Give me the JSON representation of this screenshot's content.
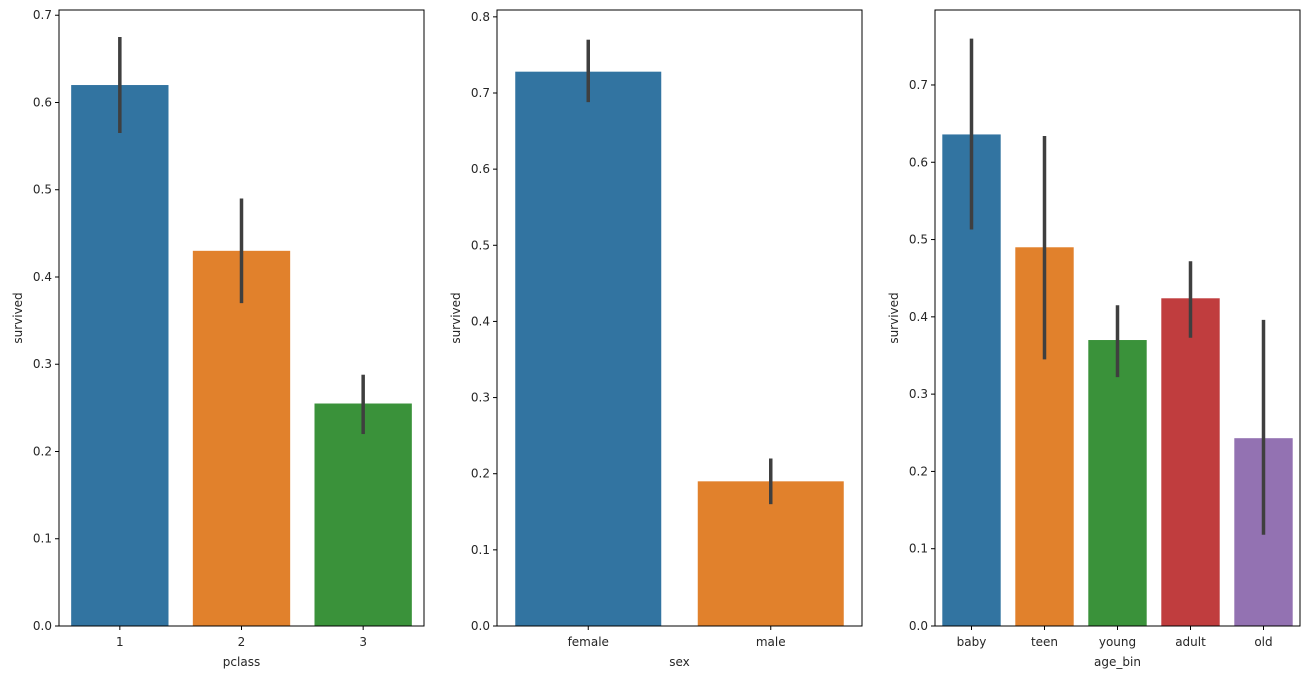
{
  "chart_data": [
    {
      "type": "bar",
      "xlabel": "pclass",
      "ylabel": "survived",
      "categories": [
        "1",
        "2",
        "3"
      ],
      "values": [
        0.62,
        0.43,
        0.255
      ],
      "ci": [
        [
          0.565,
          0.675
        ],
        [
          0.37,
          0.49
        ],
        [
          0.22,
          0.288
        ]
      ],
      "colors": [
        "#3274a1",
        "#e1812c",
        "#3a923a"
      ],
      "ylim": [
        0,
        0.706
      ],
      "yticks": [
        0.0,
        0.1,
        0.2,
        0.3,
        0.4,
        0.5,
        0.6,
        0.7
      ],
      "ytick_labels": [
        "0.0",
        "0.1",
        "0.2",
        "0.3",
        "0.4",
        "0.5",
        "0.6",
        "0.7"
      ]
    },
    {
      "type": "bar",
      "xlabel": "sex",
      "ylabel": "survived",
      "categories": [
        "female",
        "male"
      ],
      "values": [
        0.728,
        0.19
      ],
      "ci": [
        [
          0.688,
          0.77
        ],
        [
          0.16,
          0.22
        ]
      ],
      "colors": [
        "#3274a1",
        "#e1812c"
      ],
      "ylim": [
        0,
        0.809
      ],
      "yticks": [
        0.0,
        0.1,
        0.2,
        0.3,
        0.4,
        0.5,
        0.6,
        0.7,
        0.8
      ],
      "ytick_labels": [
        "0.0",
        "0.1",
        "0.2",
        "0.3",
        "0.4",
        "0.5",
        "0.6",
        "0.7",
        "0.8"
      ]
    },
    {
      "type": "bar",
      "xlabel": "age_bin",
      "ylabel": "survived",
      "categories": [
        "baby",
        "teen",
        "young",
        "adult",
        "old"
      ],
      "values": [
        0.636,
        0.49,
        0.37,
        0.424,
        0.243
      ],
      "ci": [
        [
          0.513,
          0.76
        ],
        [
          0.345,
          0.634
        ],
        [
          0.322,
          0.415
        ],
        [
          0.373,
          0.472
        ],
        [
          0.118,
          0.396
        ]
      ],
      "colors": [
        "#3274a1",
        "#e1812c",
        "#3a923a",
        "#c03d3e",
        "#9372b2"
      ],
      "ylim": [
        0,
        0.797
      ],
      "yticks": [
        0.0,
        0.1,
        0.2,
        0.3,
        0.4,
        0.5,
        0.6,
        0.7
      ],
      "ytick_labels": [
        "0.0",
        "0.1",
        "0.2",
        "0.3",
        "0.4",
        "0.5",
        "0.6",
        "0.7"
      ]
    }
  ],
  "style": {
    "errorbar_color": "#3f3f3f",
    "axis_color": "#000000",
    "text_color": "#262626"
  }
}
